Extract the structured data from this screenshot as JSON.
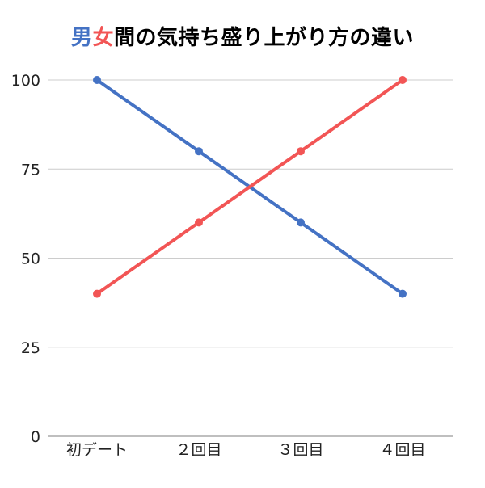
{
  "title": {
    "part1": "男",
    "part2": "女",
    "part3": "間の気持ち盛り上がり方の違い"
  },
  "colors": {
    "male": "#4472C4",
    "female": "#F25555",
    "grid": "#CCCCCC",
    "axis": "#999999",
    "text": "#222222"
  },
  "chart_data": {
    "type": "line",
    "title": "男女間の気持ち盛り上がり方の違い",
    "categories": [
      "初デート",
      "２回目",
      "３回目",
      "４回目"
    ],
    "series": [
      {
        "values": [
          100,
          80,
          60,
          40
        ],
        "color": "#4472C4"
      },
      {
        "values": [
          40,
          60,
          80,
          100
        ],
        "color": "#F25555"
      }
    ],
    "xlabel": "",
    "ylabel": "",
    "ylim": [
      0,
      100
    ],
    "yticks": [
      0,
      25,
      50,
      75,
      100
    ],
    "grid": true,
    "legend": "none"
  }
}
